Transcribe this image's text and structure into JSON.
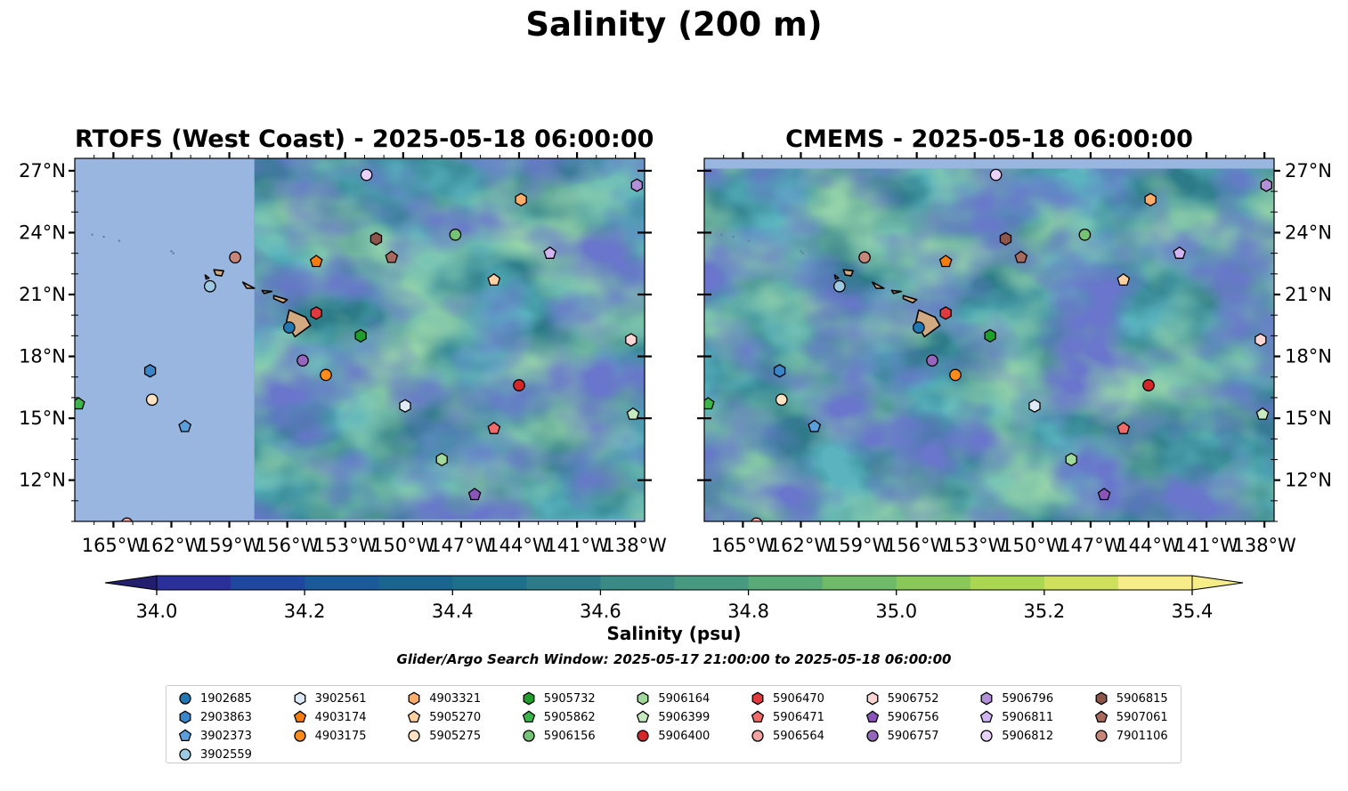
{
  "figure": {
    "title": "Salinity (200 m)",
    "colorbar_label": "Salinity (psu)",
    "window_note": "Glider/Argo Search Window: 2025-05-17 21:00:00 to 2025-05-18 06:00:00"
  },
  "colors": {
    "land": "#d2aa82",
    "nodata": "#98b6e0",
    "colormap": [
      "#241e6e",
      "#2a2f9a",
      "#2047a0",
      "#1a5a9a",
      "#1a6590",
      "#1e6f8a",
      "#2d7b88",
      "#3a8a86",
      "#479a80",
      "#58aa76",
      "#6eba68",
      "#8ac85a",
      "#aad652",
      "#cfe05c",
      "#f6ec88"
    ]
  },
  "chart_data": [
    {
      "type": "heatmap",
      "title": "RTOFS (West Coast) - 2025-05-18 06:00:00",
      "xlim": [
        -167,
        -137.5
      ],
      "ylim": [
        10,
        27.6
      ],
      "xticks": [
        "165°W",
        "162°W",
        "159°W",
        "156°W",
        "153°W",
        "150°W",
        "147°W",
        "144°W",
        "141°W",
        "138°W"
      ],
      "xtick_values": [
        -165,
        -162,
        -159,
        -156,
        -153,
        -150,
        -147,
        -144,
        -141,
        -138
      ],
      "yticks": [
        "27°N",
        "24°N",
        "21°N",
        "18°N",
        "15°N",
        "12°N"
      ],
      "ytick_values": [
        27,
        24,
        21,
        18,
        15,
        12
      ],
      "ytick_side": "left",
      "data_extent": {
        "lon": [
          -157.7,
          -137.5
        ],
        "lat": [
          10.1,
          27.6
        ]
      },
      "background_salinity": 34.5
    },
    {
      "type": "heatmap",
      "title": "CMEMS - 2025-05-18 06:00:00",
      "xlim": [
        -167,
        -137.5
      ],
      "ylim": [
        10,
        27.6
      ],
      "xticks": [
        "165°W",
        "162°W",
        "159°W",
        "156°W",
        "153°W",
        "150°W",
        "147°W",
        "144°W",
        "141°W",
        "138°W"
      ],
      "xtick_values": [
        -165,
        -162,
        -159,
        -156,
        -153,
        -150,
        -147,
        -144,
        -141,
        -138
      ],
      "yticks": [
        "27°N",
        "24°N",
        "21°N",
        "18°N",
        "15°N",
        "12°N"
      ],
      "ytick_values": [
        27,
        24,
        21,
        18,
        15,
        12
      ],
      "ytick_side": "right",
      "data_extent": {
        "lon": [
          -167,
          -137.5
        ],
        "lat": [
          10,
          27.1
        ]
      },
      "background_salinity": 34.55
    },
    {
      "type": "colorbar",
      "levels": [
        34.0,
        34.1,
        34.2,
        34.3,
        34.4,
        34.5,
        34.6,
        34.7,
        34.8,
        34.9,
        35.0,
        35.1,
        35.2,
        35.3,
        35.4
      ],
      "tick_labels": [
        "34.0",
        "34.2",
        "34.4",
        "34.6",
        "34.8",
        "35.0",
        "35.2",
        "35.4"
      ],
      "tick_values": [
        34.0,
        34.2,
        34.4,
        34.6,
        34.8,
        35.0,
        35.2,
        35.4
      ],
      "extend": "both"
    }
  ],
  "floats": [
    {
      "id": "1902685",
      "marker": "circle",
      "color": "#1f77b4",
      "lon": -155.9,
      "lat": 19.4
    },
    {
      "id": "2903863",
      "marker": "hexagon",
      "color": "#3a86c8"
    },
    {
      "id": "3902373",
      "marker": "pentagon",
      "color": "#5a9fdb",
      "lon": -161.3,
      "lat": 14.6
    },
    {
      "id": "3902559",
      "marker": "circle",
      "color": "#9ecae1",
      "lon": -160.0,
      "lat": 21.4
    },
    {
      "id": "3902561",
      "marker": "hexagon",
      "color": "#deebf7",
      "lon": -149.9,
      "lat": 15.6
    },
    {
      "id": "4903174",
      "marker": "pentagon",
      "color": "#f57c0e",
      "lon": -154.5,
      "lat": 22.6
    },
    {
      "id": "4903175",
      "marker": "circle",
      "color": "#ff8c1a",
      "lon": -154.0,
      "lat": 17.1
    },
    {
      "id": "4903321",
      "marker": "hexagon",
      "color": "#fdae6b",
      "lon": -143.9,
      "lat": 25.6
    },
    {
      "id": "5905270",
      "marker": "pentagon",
      "color": "#fdd0a2",
      "lon": -145.3,
      "lat": 21.7
    },
    {
      "id": "5905275",
      "marker": "circle",
      "color": "#ffe1c4",
      "lon": -163.0,
      "lat": 15.9
    },
    {
      "id": "5905732",
      "marker": "hexagon",
      "color": "#1f9e2c",
      "lon": -152.2,
      "lat": 19.0
    },
    {
      "id": "5905862",
      "marker": "pentagon",
      "color": "#39b54a",
      "lon": -166.8,
      "lat": 15.7
    },
    {
      "id": "5906156",
      "marker": "circle",
      "color": "#74c476",
      "lon": -147.3,
      "lat": 23.9
    },
    {
      "id": "5906164",
      "marker": "hexagon",
      "color": "#a1d99b",
      "lon": -148.0,
      "lat": 13.0
    },
    {
      "id": "5906399",
      "marker": "pentagon",
      "color": "#c7e9c0",
      "lon": -138.1,
      "lat": 15.2
    },
    {
      "id": "5906400",
      "marker": "circle",
      "color": "#d62728",
      "lon": -144.0,
      "lat": 16.6
    },
    {
      "id": "5906470",
      "marker": "hexagon",
      "color": "#e03a3e",
      "lon": -154.5,
      "lat": 20.1
    },
    {
      "id": "5906471",
      "marker": "pentagon",
      "color": "#f06a6a",
      "lon": -145.3,
      "lat": 14.5
    },
    {
      "id": "5906564",
      "marker": "circle",
      "color": "#f4a3a3",
      "lon": -164.3,
      "lat": 9.9
    },
    {
      "id": "5906752",
      "marker": "hexagon",
      "color": "#fcd5d5",
      "lon": -138.2,
      "lat": 18.8
    },
    {
      "id": "5906756",
      "marker": "pentagon",
      "color": "#8a55b8",
      "lon": -146.3,
      "lat": 11.3
    },
    {
      "id": "5906757",
      "marker": "circle",
      "color": "#9467bd",
      "lon": -155.2,
      "lat": 17.8
    },
    {
      "id": "5906796",
      "marker": "hexagon",
      "color": "#b291d8",
      "lon": -137.9,
      "lat": 26.3
    },
    {
      "id": "5906811",
      "marker": "pentagon",
      "color": "#d0b5f0",
      "lon": -142.4,
      "lat": 23.0
    },
    {
      "id": "5906812",
      "marker": "circle",
      "color": "#e8d2fb",
      "lon": -151.9,
      "lat": 26.8
    },
    {
      "id": "5906815",
      "marker": "hexagon",
      "color": "#8c564b",
      "lon": -151.4,
      "lat": 23.7
    },
    {
      "id": "5907061",
      "marker": "pentagon",
      "color": "#a86a5e",
      "lon": -150.6,
      "lat": 22.8
    },
    {
      "id": "7901106",
      "marker": "circle",
      "color": "#c4877a",
      "lon": -158.7,
      "lat": 22.8
    },
    {
      "id": "2903863b",
      "marker": "hexagon",
      "color": "#3a86c8",
      "lon": -163.1,
      "lat": 17.3
    }
  ]
}
